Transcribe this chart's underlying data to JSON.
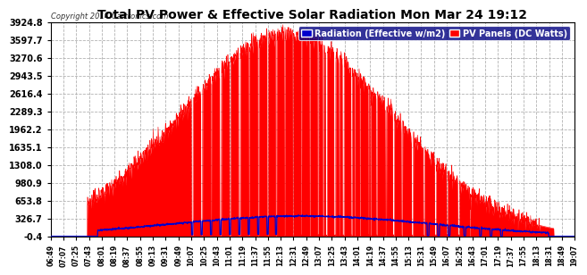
{
  "title": "Total PV Power & Effective Solar Radiation Mon Mar 24 19:12",
  "copyright": "Copyright 2014 Cartronics.com",
  "legend_blue": "Radiation (Effective w/m2)",
  "legend_red": "PV Panels (DC Watts)",
  "bg_color": "#ffffff",
  "plot_bg_color": "#ffffff",
  "fig_bg_color": "#ffffff",
  "grid_color": "#aaaaaa",
  "title_color": "#000000",
  "red_color": "#ff0000",
  "blue_color": "#0000cc",
  "legend_blue_bg": "#0000cc",
  "legend_red_bg": "#ff0000",
  "ymin": -0.4,
  "ymax": 3924.8,
  "yticks": [
    3924.8,
    3597.7,
    3270.6,
    2943.5,
    2616.4,
    2289.3,
    1962.2,
    1635.1,
    1308.0,
    980.9,
    653.8,
    326.7,
    -0.4
  ],
  "xtick_labels": [
    "06:49",
    "07:07",
    "07:25",
    "07:43",
    "08:01",
    "08:19",
    "08:37",
    "08:55",
    "09:13",
    "09:31",
    "09:49",
    "10:07",
    "10:25",
    "10:43",
    "11:01",
    "11:19",
    "11:37",
    "11:55",
    "12:13",
    "12:31",
    "12:49",
    "13:07",
    "13:25",
    "13:43",
    "14:01",
    "14:19",
    "14:37",
    "14:55",
    "15:13",
    "15:31",
    "15:49",
    "16:07",
    "16:25",
    "16:43",
    "17:01",
    "17:19",
    "17:37",
    "17:55",
    "18:13",
    "18:31",
    "18:49",
    "19:07"
  ],
  "n_points": 2000
}
